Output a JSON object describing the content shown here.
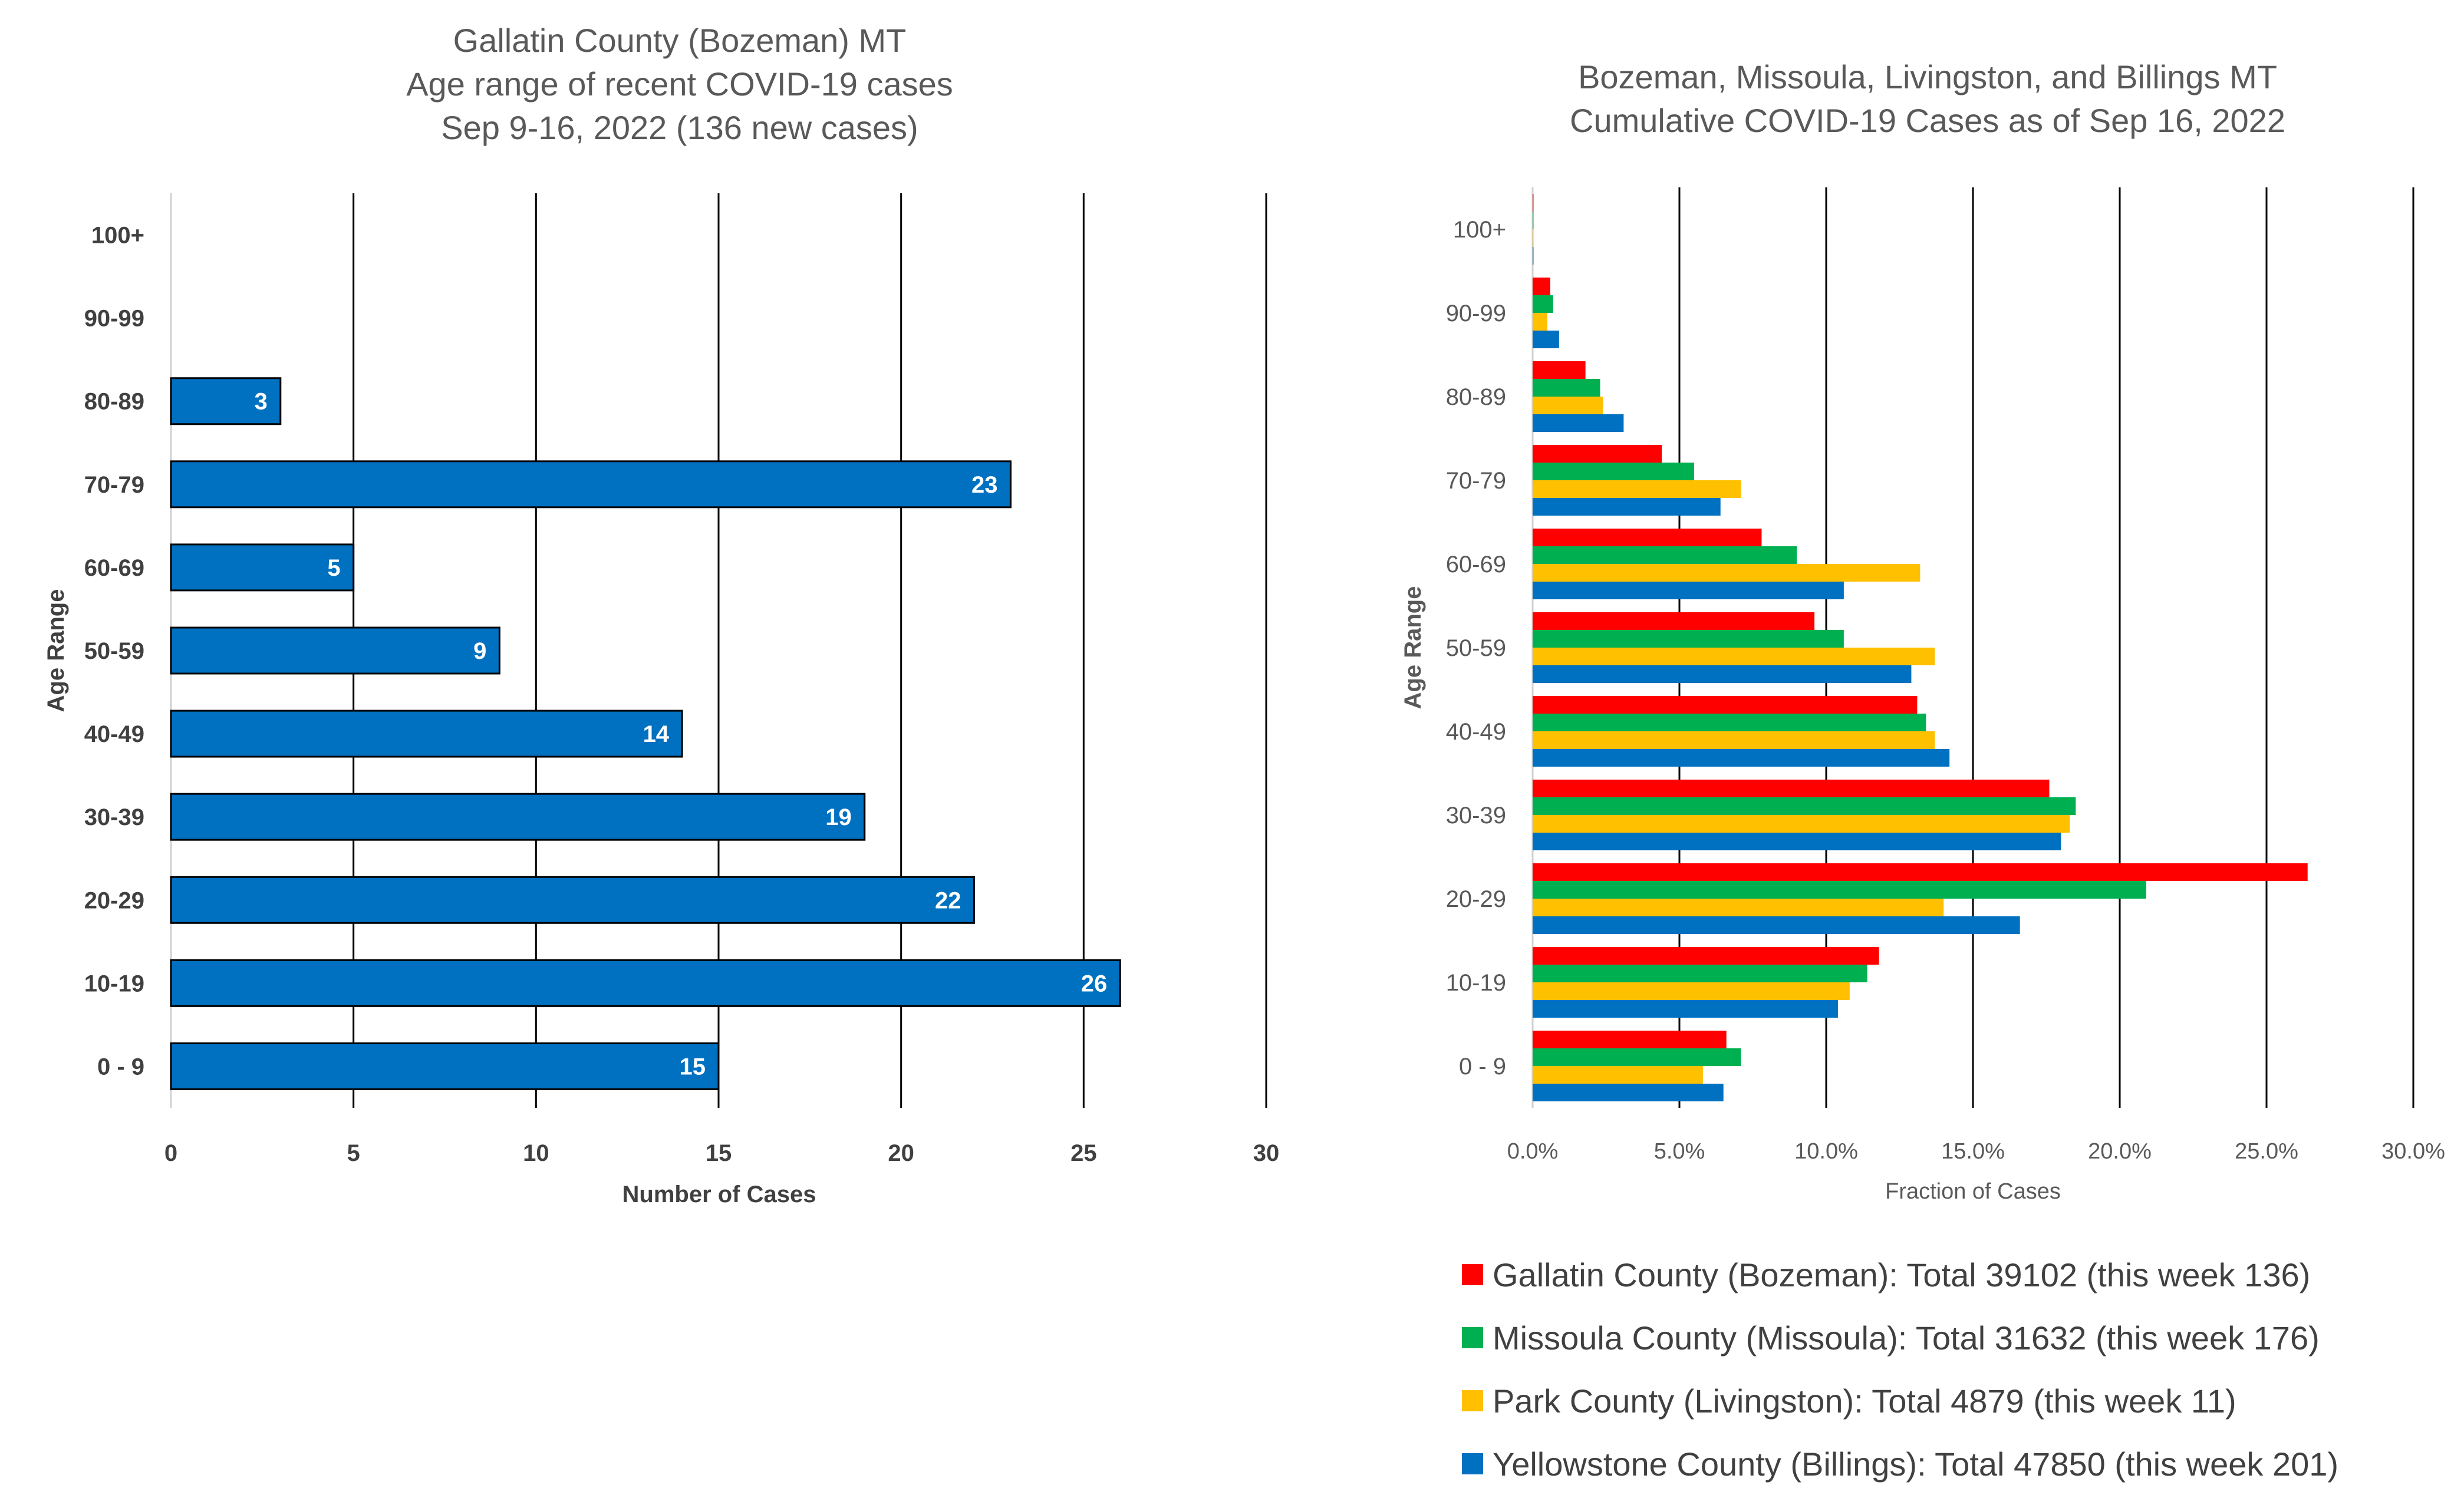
{
  "chart_data": [
    {
      "type": "bar",
      "orientation": "horizontal",
      "title_lines": [
        "Gallatin County (Bozeman) MT",
        "Age range of recent COVID-19 cases",
        "Sep 9-16, 2022 (136 new cases)"
      ],
      "xlabel": "Number of Cases",
      "ylabel": "Age Range",
      "categories": [
        "0 - 9",
        "10-19",
        "20-29",
        "30-39",
        "40-49",
        "50-59",
        "60-69",
        "70-79",
        "80-89",
        "90-99",
        "100+"
      ],
      "values": [
        15,
        26,
        22,
        19,
        14,
        9,
        5,
        23,
        3,
        null,
        null
      ],
      "data_labels": [
        "15",
        "26",
        "22",
        "19",
        "14",
        "9",
        "5",
        "23",
        "3",
        "",
        ""
      ],
      "xlim": [
        0,
        30
      ],
      "xticks": [
        0,
        5,
        10,
        15,
        20,
        25,
        30
      ],
      "xtick_labels": [
        "0",
        "5",
        "10",
        "15",
        "20",
        "25",
        "30"
      ],
      "bar_color": "#0070C0",
      "grid": "vertical"
    },
    {
      "type": "bar",
      "orientation": "horizontal",
      "title_lines": [
        "Bozeman, Missoula, Livingston, and Billings MT",
        "Cumulative COVID-19 Cases as of Sep 16, 2022"
      ],
      "xlabel": "Fraction of Cases",
      "ylabel": "Age Range",
      "categories": [
        "0 - 9",
        "10-19",
        "20-29",
        "30-39",
        "40-49",
        "50-59",
        "60-69",
        "70-79",
        "80-89",
        "90-99",
        "100+"
      ],
      "series": [
        {
          "name": "Gallatin County (Bozeman): Total 39102 (this week 136)",
          "color": "#FF0000",
          "values": [
            6.6,
            11.8,
            26.4,
            17.6,
            13.1,
            9.6,
            7.8,
            4.4,
            1.8,
            0.6,
            0.02
          ]
        },
        {
          "name": "Missoula County (Missoula): Total 31632 (this week 176)",
          "color": "#00B050",
          "values": [
            7.1,
            11.4,
            20.9,
            18.5,
            13.4,
            10.6,
            9.0,
            5.5,
            2.3,
            0.7,
            0.03
          ]
        },
        {
          "name": "Park County (Livingston): Total 4879 (this week 11)",
          "color": "#FFC000",
          "values": [
            5.8,
            10.8,
            14.0,
            18.3,
            13.7,
            13.7,
            13.2,
            7.1,
            2.4,
            0.5,
            0.02
          ]
        },
        {
          "name": "Yellowstone County (Billings): Total 47850 (this week 201)",
          "color": "#0070C0",
          "values": [
            6.5,
            10.4,
            16.6,
            18.0,
            14.2,
            12.9,
            10.6,
            6.4,
            3.1,
            0.9,
            0.03
          ]
        }
      ],
      "xlim": [
        0,
        30
      ],
      "xticks": [
        0,
        5,
        10,
        15,
        20,
        25,
        30
      ],
      "xtick_labels": [
        "0.0%",
        "5.0%",
        "10.0%",
        "15.0%",
        "20.0%",
        "25.0%",
        "30.0%"
      ],
      "legend_position": "bottom",
      "grid": "vertical"
    }
  ]
}
